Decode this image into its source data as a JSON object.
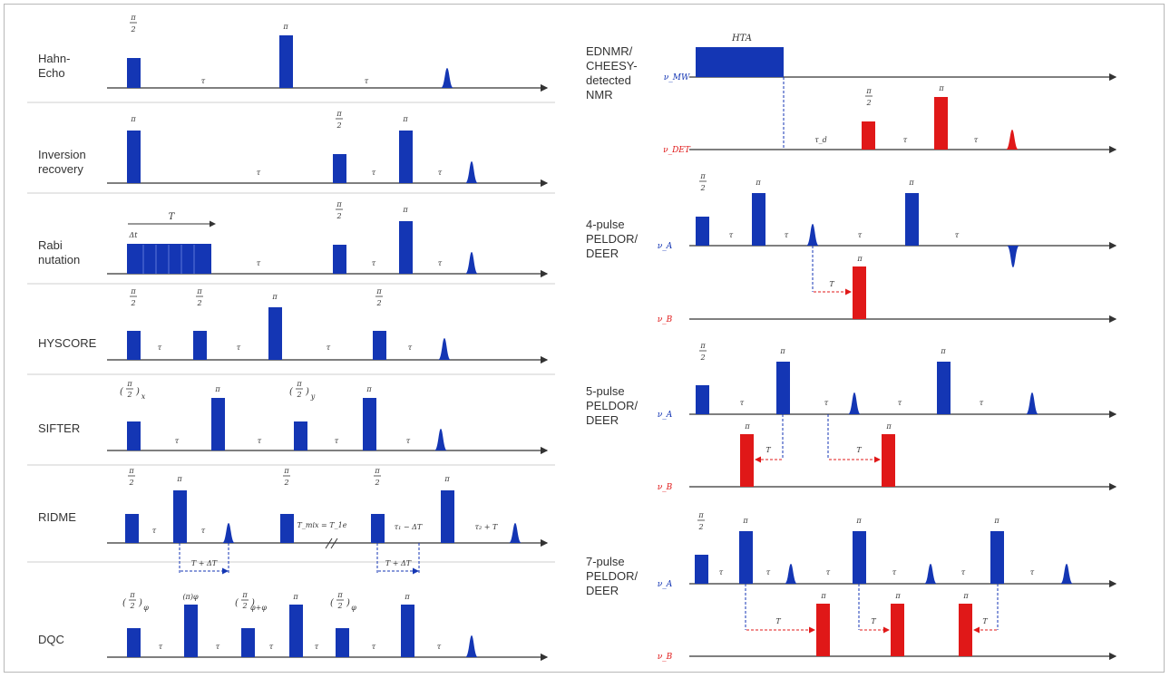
{
  "colors": {
    "blue": "#1436b4",
    "red": "#e01818",
    "axis": "#333333",
    "dash": "#1436b4",
    "chanA": "#1436b4",
    "chanB": "#e01818"
  },
  "symbols": {
    "pi": "π",
    "half": "2",
    "tau": "τ",
    "tau1": "τ",
    "tau2": "τ",
    "tau3": "τ",
    "T": "T",
    "dt": "Δt",
    "T1": "T",
    "T2": "T",
    "T3": "T",
    "tmix": "T_mix = T_1e",
    "tau1minus": "τ₁ − ΔT",
    "tau2plusT": "τ₂ + T",
    "TplusDT": "T + ΔT",
    "pi2x": "(π/2)x",
    "pi2y": "(π/2)y",
    "pi2phi": "(π/2)φ",
    "piphi": "(π)φ",
    "pi2phiphi": "(π/2)φ+φ",
    "pi2varphi": "(π/2)φ",
    "hta": "HTA",
    "nuMW": "ν_MW",
    "nuDET": "ν_DET",
    "tauD": "τ_d",
    "nuA": "ν_A",
    "nuB": "ν_B"
  },
  "sequences_left": [
    {
      "id": "hahn",
      "label": [
        "Hahn-",
        "Echo"
      ]
    },
    {
      "id": "inversion",
      "label": [
        "Inversion",
        "recovery"
      ]
    },
    {
      "id": "rabi",
      "label": [
        "Rabi",
        "nutation"
      ]
    },
    {
      "id": "hyscore",
      "label": [
        "HYSCORE"
      ]
    },
    {
      "id": "sifter",
      "label": [
        "SIFTER"
      ]
    },
    {
      "id": "ridme",
      "label": [
        "RIDME"
      ]
    },
    {
      "id": "dqc",
      "label": [
        "DQC"
      ]
    }
  ],
  "sequences_right": [
    {
      "id": "ednmr",
      "label": [
        "EDNMR/",
        "CHEESY-",
        "detected",
        "NMR"
      ]
    },
    {
      "id": "deer4",
      "label": [
        "4-pulse",
        "PELDOR/",
        "DEER"
      ]
    },
    {
      "id": "deer5",
      "label": [
        "5-pulse",
        "PELDOR/",
        "DEER"
      ]
    },
    {
      "id": "deer7",
      "label": [
        "7-pulse",
        "PELDOR/",
        "DEER"
      ]
    }
  ]
}
